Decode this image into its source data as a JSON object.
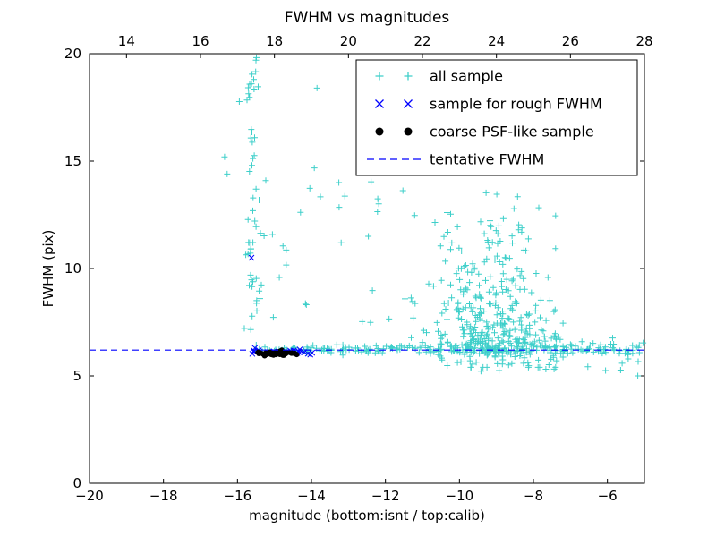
{
  "colors": {
    "background": "#ffffff",
    "axes": "#000000"
  },
  "chart_data": {
    "type": "scatter",
    "title": "FWHM vs magnitudes",
    "xlabel": "magnitude (bottom:isnt / top:calib)",
    "ylabel": "FWHM (pix)",
    "xlim": [
      -20,
      -5
    ],
    "xlim_top": [
      13,
      28
    ],
    "ylim": [
      0,
      20
    ],
    "x_ticks": [
      -20,
      -18,
      -16,
      -14,
      -12,
      -10,
      -8,
      -6
    ],
    "x_ticks_top": [
      14,
      16,
      18,
      20,
      22,
      24,
      26,
      28
    ],
    "y_ticks": [
      0,
      5,
      10,
      15,
      20
    ],
    "grid": false,
    "legend": {
      "position": "upper right",
      "entries": [
        "all sample",
        "sample for rough FWHM",
        "coarse PSF-like sample",
        "tentative FWHM"
      ]
    },
    "line": {
      "name": "tentative FWHM",
      "color": "#0000ff",
      "style": "dashed",
      "y": 6.2
    },
    "series": [
      {
        "name": "all sample",
        "marker": "plus",
        "color": "#3ecfca",
        "points": [
          [
            -16.35,
            15.2
          ],
          [
            -16.28,
            14.4
          ],
          [
            -15.5,
            19.7
          ],
          [
            -15.62,
            18.6
          ],
          [
            -13.85,
            18.4
          ],
          [
            -12.1,
            14.9
          ],
          [
            -5.18,
            5.0
          ],
          [
            -6.05,
            5.25
          ]
        ],
        "clusters": [
          {
            "n": 55,
            "x": {
              "dist": "gauss",
              "mu": -15.55,
              "sd": 0.13,
              "min": -15.95,
              "max": -15.15
            },
            "y": {
              "dist": "uniform",
              "min": 6.8,
              "max": 19.9
            }
          },
          {
            "n": 16,
            "x": {
              "dist": "uniform",
              "min": -15.15,
              "max": -12.9
            },
            "y": {
              "dist": "uniform",
              "min": 7.2,
              "max": 14.8
            }
          },
          {
            "n": 230,
            "x": {
              "dist": "gauss",
              "mu": -9.25,
              "sd": 0.85,
              "min": -11.6,
              "max": -7.4
            },
            "y": {
              "dist": "gauss",
              "mu": 8.8,
              "sd": 2.0,
              "min": 5.4,
              "max": 15.6
            }
          },
          {
            "n": 170,
            "x": {
              "dist": "gauss",
              "mu": -9.0,
              "sd": 1.0,
              "min": -11.8,
              "max": -7.2
            },
            "y": {
              "dist": "gauss",
              "mu": 6.5,
              "sd": 0.55,
              "min": 5.2,
              "max": 8.5
            }
          },
          {
            "n": 215,
            "x": {
              "dist": "uniform",
              "min": -15.55,
              "max": -5.1
            },
            "y": {
              "dist": "gauss",
              "mu": 6.22,
              "sd": 0.1,
              "min": 5.9,
              "max": 6.55
            }
          },
          {
            "n": 30,
            "x": {
              "dist": "uniform",
              "min": -7.6,
              "max": -5.0
            },
            "y": {
              "dist": "gauss",
              "mu": 6.1,
              "sd": 0.5,
              "min": 4.85,
              "max": 7.4
            }
          },
          {
            "n": 14,
            "x": {
              "dist": "uniform",
              "min": -12.7,
              "max": -11.2
            },
            "y": {
              "dist": "uniform",
              "min": 6.8,
              "max": 14.2
            }
          }
        ]
      },
      {
        "name": "sample for rough FWHM",
        "marker": "x",
        "color": "#0000ff",
        "points": [
          [
            -15.62,
            10.5
          ]
        ],
        "clusters": [
          {
            "n": 30,
            "x": {
              "dist": "uniform",
              "min": -15.68,
              "max": -13.98
            },
            "y": {
              "dist": "gauss",
              "mu": 6.12,
              "sd": 0.07,
              "min": 5.95,
              "max": 6.3
            }
          }
        ]
      },
      {
        "name": "coarse PSF-like sample",
        "marker": "dot",
        "color": "#000000",
        "points": [],
        "clusters": [
          {
            "n": 50,
            "x": {
              "dist": "gauss",
              "mu": -14.95,
              "sd": 0.3,
              "min": -15.5,
              "max": -14.4
            },
            "y": {
              "dist": "gauss",
              "mu": 6.05,
              "sd": 0.05,
              "min": 5.9,
              "max": 6.2
            }
          }
        ]
      }
    ]
  }
}
